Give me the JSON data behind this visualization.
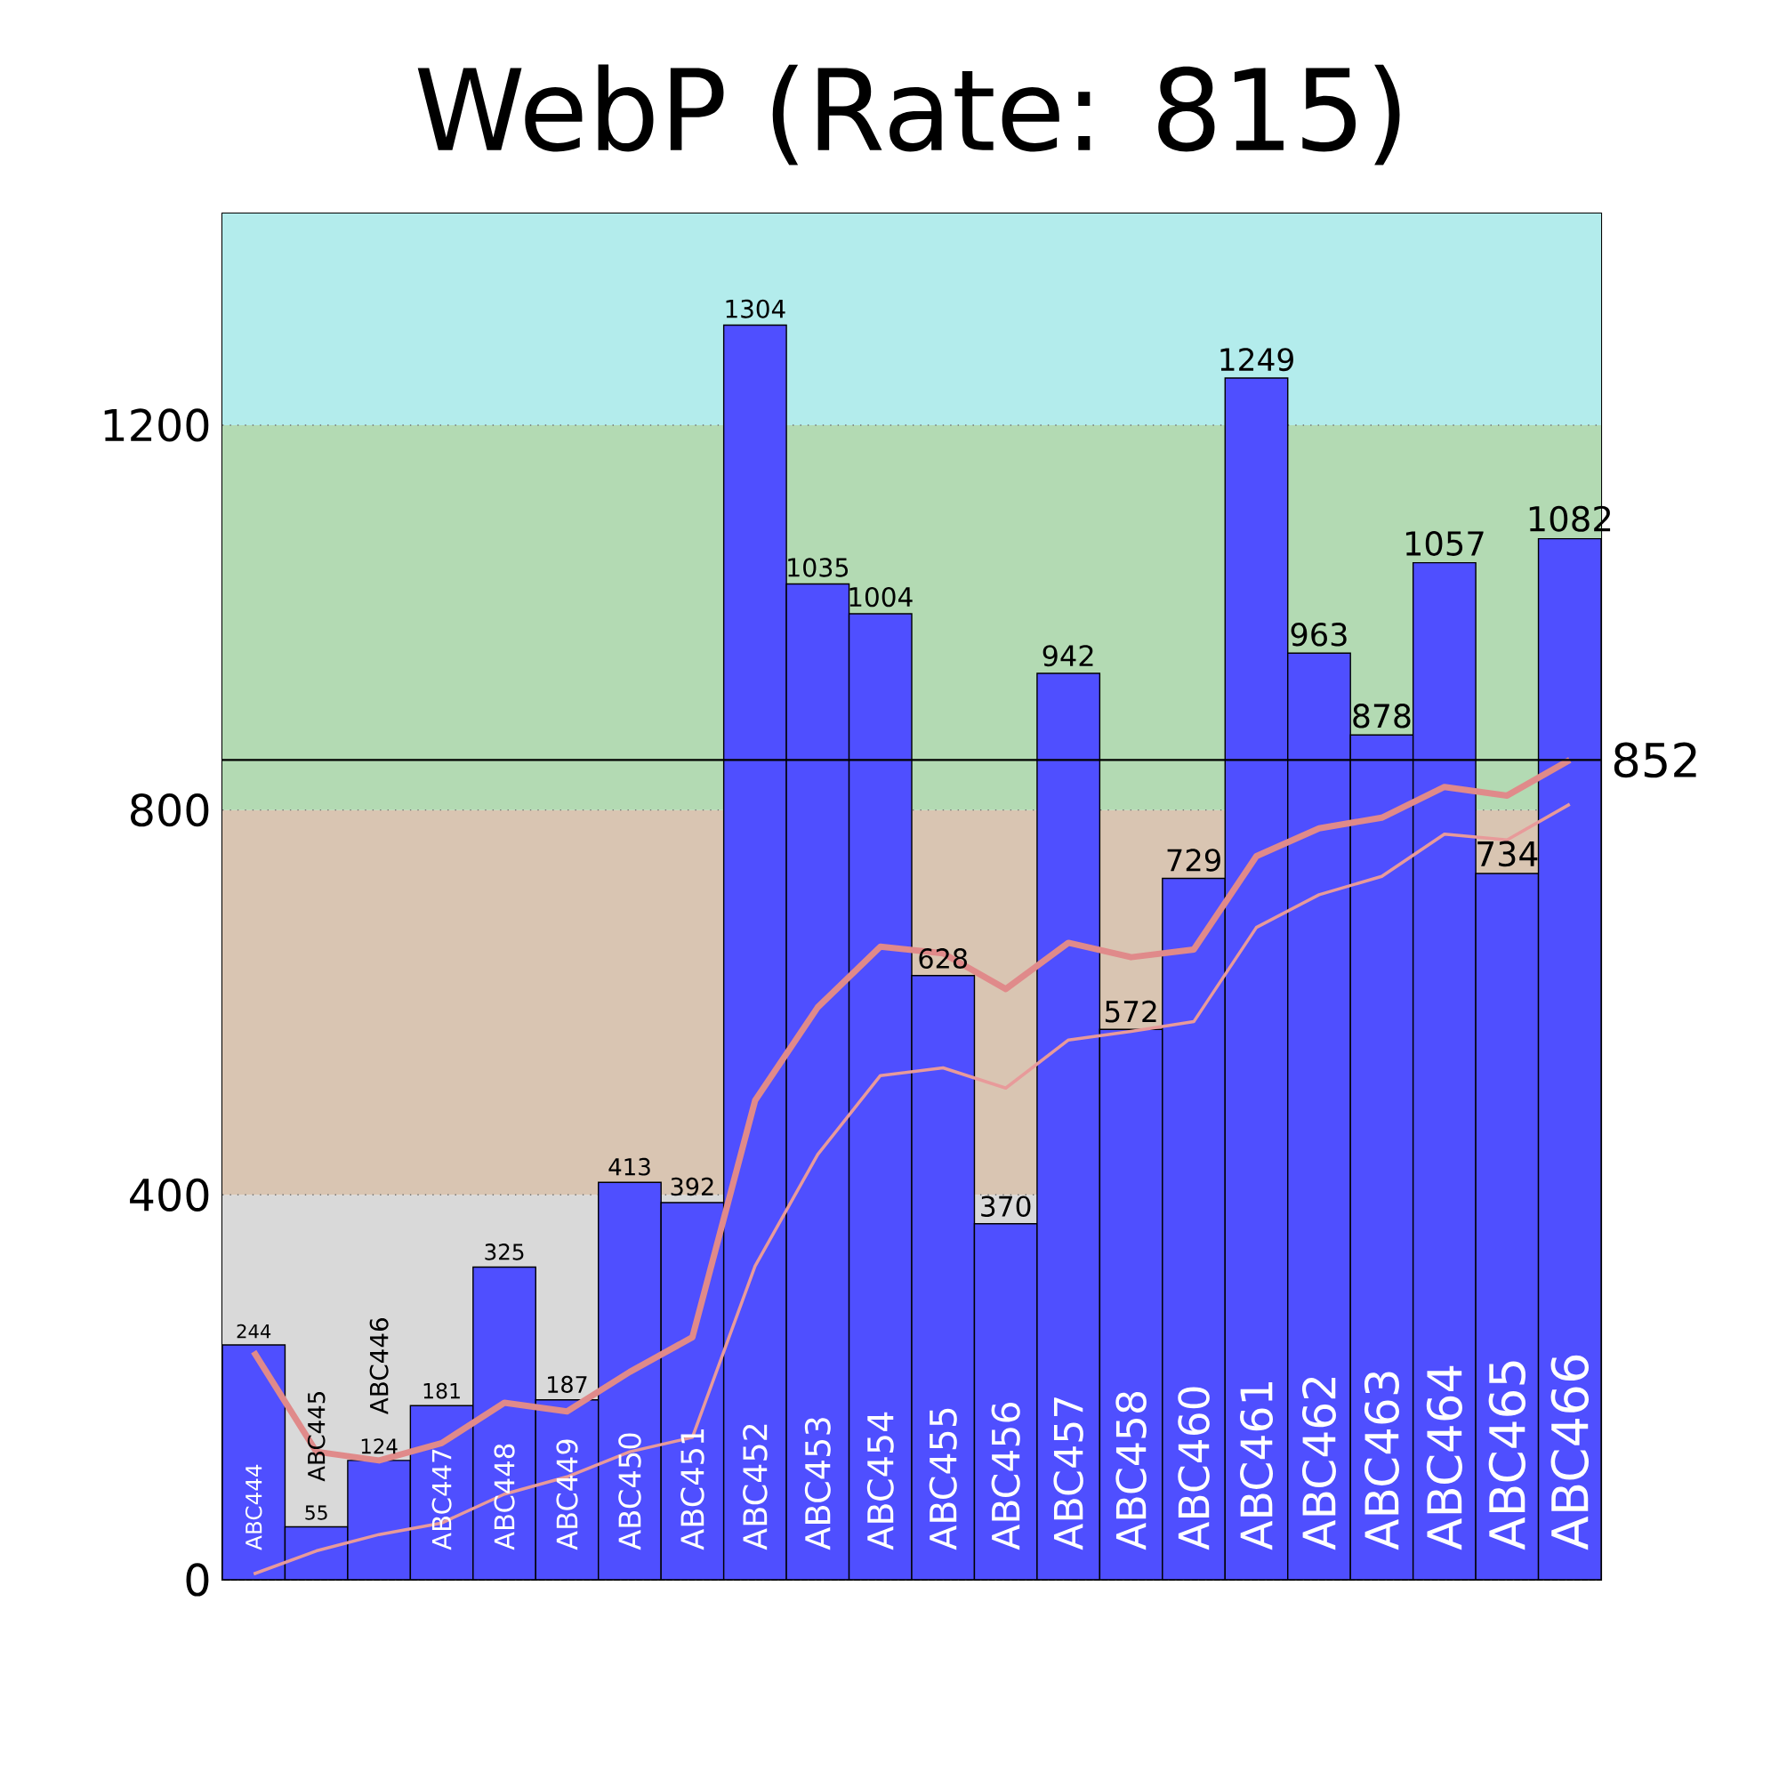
{
  "chart_data": {
    "type": "bar",
    "title": "WebP (Rate: 815)",
    "categories": [
      "ABC444",
      "ABC445",
      "ABC446",
      "ABC447",
      "ABC448",
      "ABC449",
      "ABC450",
      "ABC451",
      "ABC452",
      "ABC453",
      "ABC454",
      "ABC455",
      "ABC456",
      "ABC457",
      "ABC458",
      "ABC460",
      "ABC461",
      "ABC462",
      "ABC463",
      "ABC464",
      "ABC465",
      "ABC466"
    ],
    "series": [
      {
        "color": "#4f4fff",
        "values": [
          244,
          55,
          124,
          181,
          325,
          187,
          413,
          392,
          1304,
          1035,
          1004,
          628,
          370,
          942,
          572,
          729,
          1249,
          963,
          878,
          1057,
          734,
          1082
        ],
        "value_labels": [
          "244",
          "55",
          "124",
          "181",
          "325",
          "187",
          "413",
          "392",
          "1304",
          "1035",
          "1004",
          "628",
          "370",
          "942",
          "572",
          "729",
          "1249",
          "963",
          "878",
          "1057",
          "734",
          "1082"
        ]
      },
      {
        "type": "line",
        "color": "#e08a8a",
        "values": [
          237,
          133,
          124,
          142,
          184,
          175,
          216,
          252,
          498,
          595,
          658,
          651,
          614,
          662,
          647,
          655,
          752,
          781,
          792,
          824,
          815,
          852
        ]
      },
      {
        "type": "line",
        "color": "#e89a9a",
        "values": [
          6,
          30,
          47,
          59,
          89,
          107,
          133,
          148,
          326,
          442,
          524,
          532,
          511,
          561,
          570,
          580,
          678,
          712,
          731,
          775,
          769,
          806
        ]
      }
    ],
    "ylim": [
      0,
      1420
    ],
    "yticks": [
      0,
      400,
      800,
      1200
    ],
    "grid": "y",
    "bands": [
      {
        "axis": "y",
        "from": 0,
        "to": 400,
        "color": "#d9d9d9"
      },
      {
        "axis": "y",
        "from": 400,
        "to": 800,
        "color": "#d9c5b2"
      },
      {
        "axis": "y",
        "from": 800,
        "to": 1200,
        "color": "#b3dab3"
      },
      {
        "axis": "y",
        "from": 1200,
        "to": 1420,
        "color": "#b3ecec"
      }
    ],
    "ref_lines": [
      {
        "axis": "y",
        "value": 852,
        "label": "852",
        "color": "#000000"
      }
    ]
  }
}
